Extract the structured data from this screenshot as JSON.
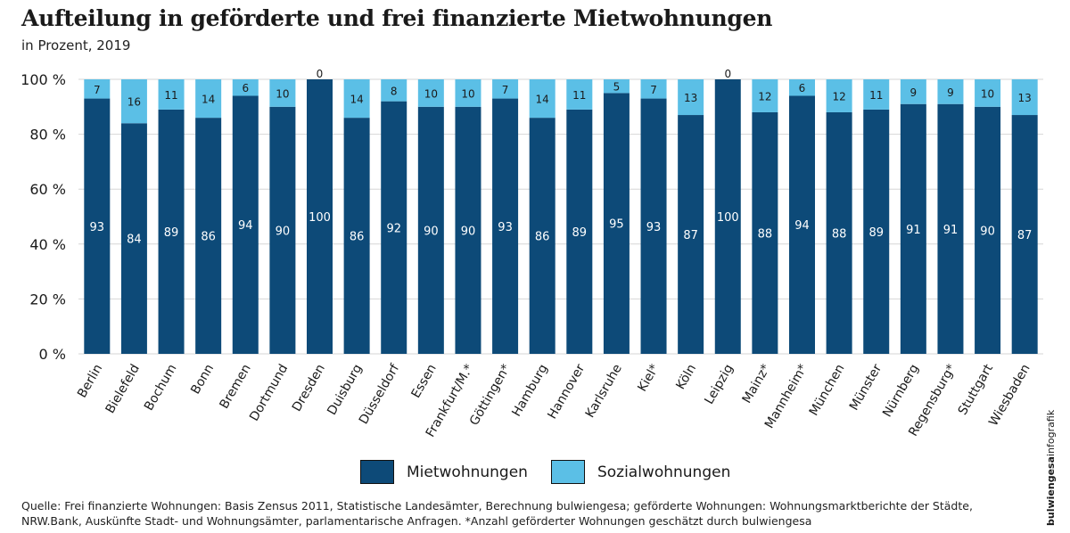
{
  "title": "Aufteilung in geförderte und frei finanzierte Mietwohnungen",
  "subtitle": "in Prozent, 2019",
  "source": "Quelle: Frei finanzierte Wohnungen: Basis Zensus 2011, Statistische Landesämter, Berechnung bulwiengesa; geförderte Wohnungen: Wohnungsmarktberichte der Städte, NRW.Bank, Auskünfte Stadt- und Wohnungsämter, parlamentarische Anfragen. *Anzahl geförderter Wohnungen geschätzt durch bulwiengesa",
  "brand": {
    "bold": "bulwiengesa",
    "rest": "infografik"
  },
  "colors": {
    "miet": "#0d4a78",
    "sozial": "#5bbfe6"
  },
  "chart_data": {
    "type": "bar",
    "stacked": true,
    "title": "Aufteilung in geförderte und frei finanzierte Mietwohnungen",
    "subtitle": "in Prozent, 2019",
    "categories": [
      "Berlin",
      "Bielefeld",
      "Bochum",
      "Bonn",
      "Bremen",
      "Dortmund",
      "Dresden",
      "Duisburg",
      "Düsseldorf",
      "Essen",
      "Frankfurt/M.*",
      "Göttingen*",
      "Hamburg",
      "Hannover",
      "Karlsruhe",
      "Kiel*",
      "Köln",
      "Leipzig",
      "Mainz*",
      "Mannheim*",
      "München",
      "Münster",
      "Nürnberg",
      "Regensburg*",
      "Stuttgart",
      "Wiesbaden"
    ],
    "series": [
      {
        "name": "Mietwohnungen",
        "color": "#0d4a78",
        "values": [
          93,
          84,
          89,
          86,
          94,
          90,
          100,
          86,
          92,
          90,
          90,
          93,
          86,
          89,
          95,
          93,
          87,
          100,
          88,
          94,
          88,
          89,
          91,
          91,
          90,
          87
        ]
      },
      {
        "name": "Sozialwohnungen",
        "color": "#5bbfe6",
        "values": [
          7,
          16,
          11,
          14,
          6,
          10,
          0,
          14,
          8,
          10,
          10,
          7,
          14,
          11,
          5,
          7,
          13,
          0,
          12,
          6,
          12,
          11,
          9,
          9,
          10,
          13
        ]
      }
    ],
    "yticks": [
      "0 %",
      "20 %",
      "40 %",
      "60 %",
      "80 %",
      "100 %"
    ],
    "ylim": [
      0,
      100
    ],
    "grid": true,
    "legend": "bottom"
  }
}
